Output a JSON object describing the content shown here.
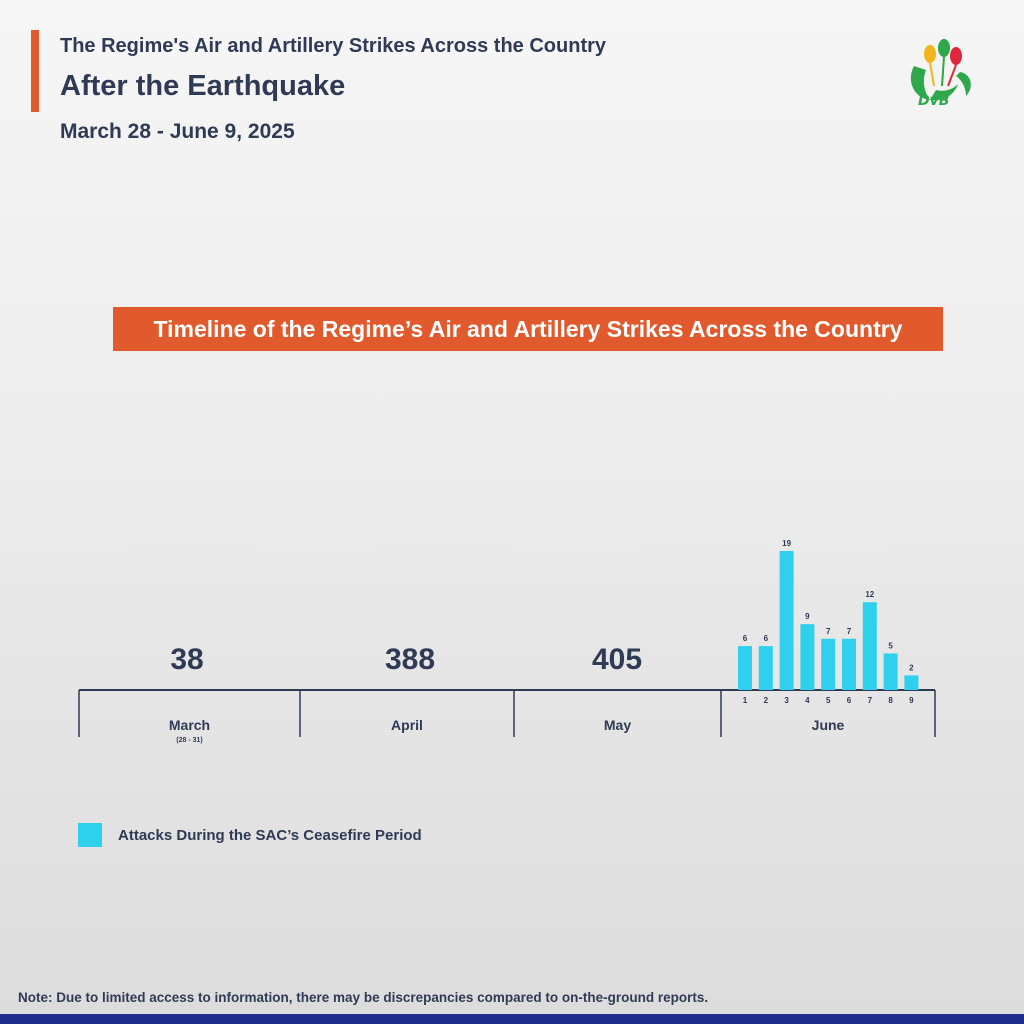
{
  "header": {
    "kicker": "The Regime's Air and Artillery Strikes Across the Country",
    "headline": "After the Earthquake",
    "date_range": "March 28 - June 9, 2025",
    "logo_text": "DvB"
  },
  "banner": {
    "title": "Timeline of the Regime’s Air and Artillery Strikes Across the Country"
  },
  "legend": {
    "label": "Attacks During the SAC’s Ceasefire Period",
    "color": "#2ed0ee"
  },
  "note": "Note: Due to limited access to information, there may be discrepancies compared to on-the-ground reports.",
  "colors": {
    "accent": "#e05a2e",
    "text": "#2f3b55",
    "bar": "#2ed0ee",
    "footer": "#1d2d8c"
  },
  "chart_data": [
    {
      "type": "table",
      "categories": [
        "March",
        "April",
        "May",
        "June"
      ],
      "sublabels": [
        "(28 - 31)",
        "",
        "",
        ""
      ],
      "values": [
        38,
        388,
        405,
        null
      ]
    },
    {
      "type": "bar",
      "group": "June",
      "categories": [
        "1",
        "2",
        "3",
        "4",
        "5",
        "6",
        "7",
        "8",
        "9"
      ],
      "values": [
        6,
        6,
        19,
        9,
        7,
        7,
        12,
        5,
        2
      ]
    }
  ]
}
